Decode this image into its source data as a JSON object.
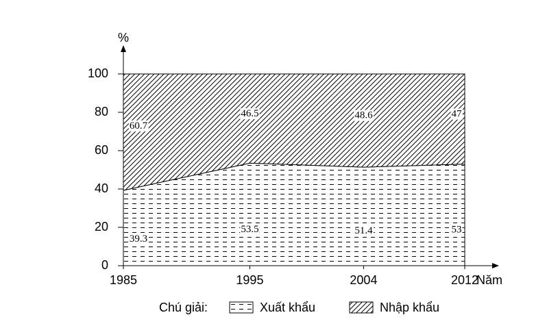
{
  "chart_data": {
    "type": "stacked-area",
    "ylabel": "%",
    "xlabel": "Năm",
    "legend_title": "Chú giải:",
    "x": [
      1985,
      1995,
      2004,
      2012
    ],
    "xlim": [
      1985,
      2012
    ],
    "xticks": [
      1985,
      1995,
      2004,
      2012
    ],
    "ylim": [
      0,
      100
    ],
    "yticks": [
      0,
      20,
      40,
      60,
      80,
      100
    ],
    "series": [
      {
        "name": "Xuất khẩu",
        "color": "#000000",
        "pattern": "dashes",
        "values": [
          39.3,
          53.5,
          51.4,
          53
        ]
      },
      {
        "name": "Nhập khẩu",
        "color": "#000000",
        "pattern": "hatch",
        "values": [
          60.7,
          46.5,
          48.6,
          47
        ]
      }
    ]
  }
}
